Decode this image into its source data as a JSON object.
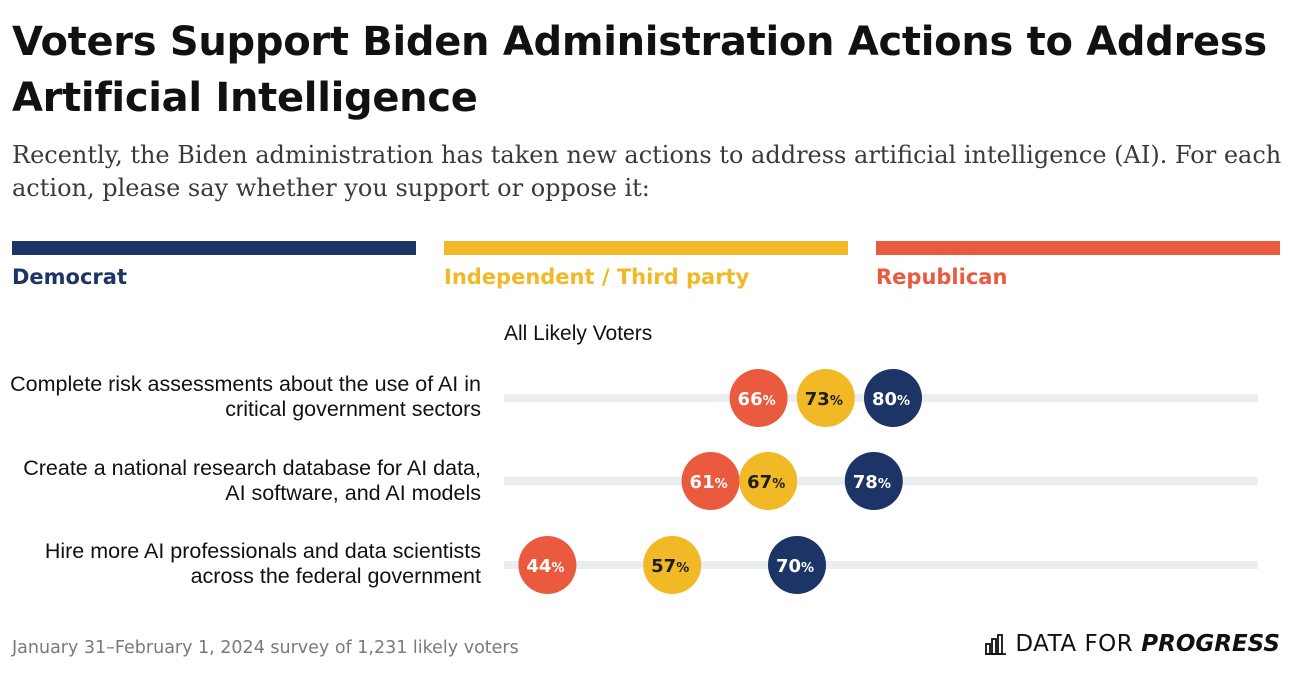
{
  "title": "Voters Support Biden Administration Actions to Address Artificial Intelligence",
  "subtitle": "Recently, the Biden administration has taken new actions to address artificial intelligence (AI). For each action, please say whether you support or oppose it:",
  "colors": {
    "democrat": "#1d3466",
    "independent": "#f0b925",
    "republican": "#ea5a3f",
    "track": "#eaeef1"
  },
  "legend": [
    {
      "label": "Democrat",
      "color": "#1d3466"
    },
    {
      "label": "Independent / Third party",
      "color": "#f0b925"
    },
    {
      "label": "Republican",
      "color": "#ea5a3f"
    }
  ],
  "footer": "January 31–February 1, 2024 survey of 1,231 likely voters",
  "brand": {
    "part1": "DATA FOR",
    "part2": "PROGRESS",
    "icon": "bar-chart-icon"
  },
  "chart_data": {
    "type": "dot",
    "group_label": "All Likely Voters",
    "categories": [
      "Complete risk assessments about the use of AI in critical government sectors",
      "Create a national research database for AI data, AI software, and AI models",
      "Hire more AI professionals and data scientists across the federal government"
    ],
    "series": [
      {
        "name": "Republican",
        "color": "#ea5a3f",
        "values": [
          66,
          61,
          44
        ]
      },
      {
        "name": "Independent / Third party",
        "color": "#f0b925",
        "values": [
          73,
          67,
          57
        ]
      },
      {
        "name": "Democrat",
        "color": "#1d3466",
        "values": [
          80,
          78,
          70
        ]
      }
    ],
    "xlim": [
      0,
      100
    ],
    "unit": "%"
  }
}
